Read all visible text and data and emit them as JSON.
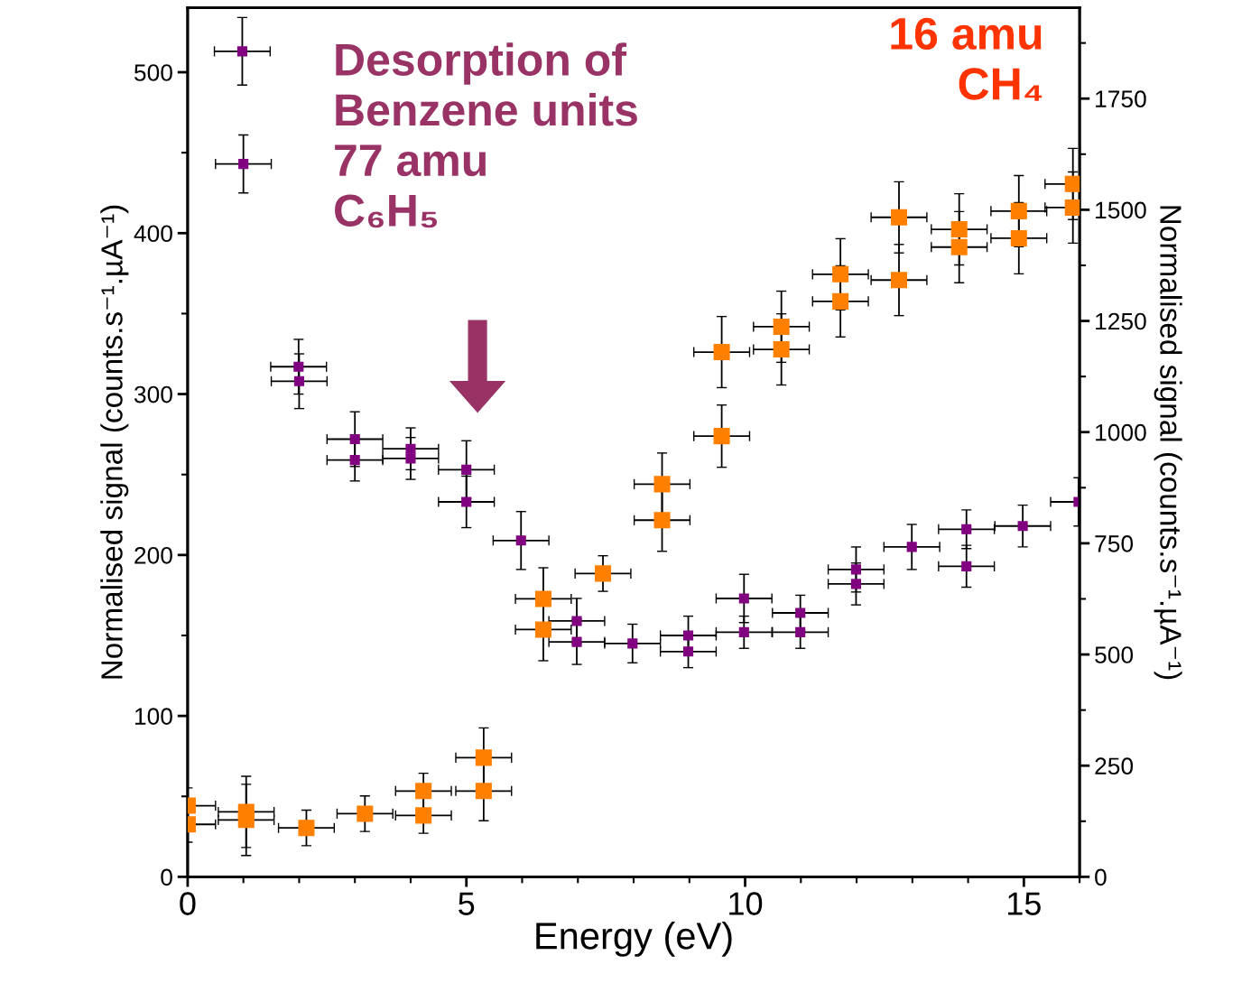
{
  "chart_data": {
    "type": "scatter",
    "xlabel": "Energy (eV)",
    "ylabel": "Normalised signal (counts.s⁻¹.µA⁻¹)",
    "y2label": "Normalised signal (counts.s⁻¹.µA⁻¹)",
    "xlim": [
      0,
      16
    ],
    "xticks": [
      0,
      5,
      10,
      15
    ],
    "ylim": [
      0,
      540
    ],
    "yticks": [
      0,
      100,
      200,
      300,
      400,
      500
    ],
    "y2lim": [
      0,
      1954
    ],
    "y2ticks": [
      0,
      250,
      500,
      750,
      1000,
      1250,
      1500,
      1750
    ],
    "marker": "square",
    "grid": false,
    "legend": false,
    "series": [
      {
        "color": "#800080",
        "x": [
          0.98,
          1.0,
          1.99,
          2.0,
          3.0,
          3.0,
          4.0,
          4.0,
          5.0,
          5.0,
          5.98,
          6.98,
          6.98,
          7.98,
          8.98,
          8.98,
          9.98,
          9.98,
          10.99,
          10.99,
          11.99,
          11.99,
          12.99,
          13.97,
          13.97,
          14.98,
          15.98
        ],
        "values": [
          513,
          443,
          317,
          308,
          272,
          259,
          266,
          260,
          253,
          233,
          209,
          159,
          146,
          145,
          150,
          140,
          173,
          152,
          164,
          152,
          191,
          182,
          205,
          216,
          193,
          218,
          233
        ],
        "errors": [
          21,
          18,
          17,
          17,
          17,
          13,
          13,
          13,
          18,
          16,
          18,
          14,
          14,
          12,
          12,
          10,
          15,
          10,
          11,
          10,
          14,
          13,
          14,
          12,
          13,
          13,
          15
        ],
        "xerrors": [
          0.5,
          0.5,
          0.5,
          0.5,
          0.5,
          0.5,
          0.5,
          0.5,
          0.5,
          0.5,
          0.5,
          0.5,
          0.5,
          0.5,
          0.5,
          0.5,
          0.5,
          0.5,
          0.5,
          0.5,
          0.5,
          0.5,
          0.5,
          0.5,
          0.5,
          0.5,
          0.5
        ]
      },
      {
        "color": "#ff8000",
        "axis": "y2",
        "x": [
          0,
          0,
          1.05,
          1.05,
          2.13,
          3.18,
          4.23,
          4.23,
          5.31,
          5.31,
          6.38,
          6.38,
          7.45,
          8.51,
          8.51,
          9.58,
          9.58,
          10.65,
          10.65,
          11.71,
          11.71,
          12.76,
          12.76,
          13.84,
          13.84,
          14.91,
          14.91,
          15.88,
          15.88
        ],
        "values": [
          160,
          118,
          146,
          128,
          110,
          142,
          193,
          138,
          268,
          193,
          625,
          556,
          682,
          883,
          802,
          1180,
          991,
          1237,
          1186,
          1355,
          1294,
          1483,
          1342,
          1456,
          1416,
          1497,
          1436,
          1558,
          1505
        ],
        "errors": [
          40,
          40,
          80,
          80,
          40,
          40,
          40,
          40,
          67,
          67,
          70,
          70,
          40,
          70,
          70,
          80,
          70,
          80,
          80,
          80,
          80,
          80,
          80,
          80,
          80,
          80,
          80,
          80,
          80
        ],
        "xerrors": [
          0.5,
          0.5,
          0.5,
          0.5,
          0.5,
          0.5,
          0.5,
          0.5,
          0.5,
          0.5,
          0.5,
          0.5,
          0.5,
          0.5,
          0.5,
          0.5,
          0.5,
          0.5,
          0.5,
          0.5,
          0.5,
          0.5,
          0.5,
          0.5,
          0.5,
          0.5,
          0.5,
          0.5,
          0.5
        ]
      }
    ],
    "annotations": [
      "Desorption of\nBenzene units\n77 amu\nC₆H₅",
      "16 amu\nCH₄"
    ]
  }
}
